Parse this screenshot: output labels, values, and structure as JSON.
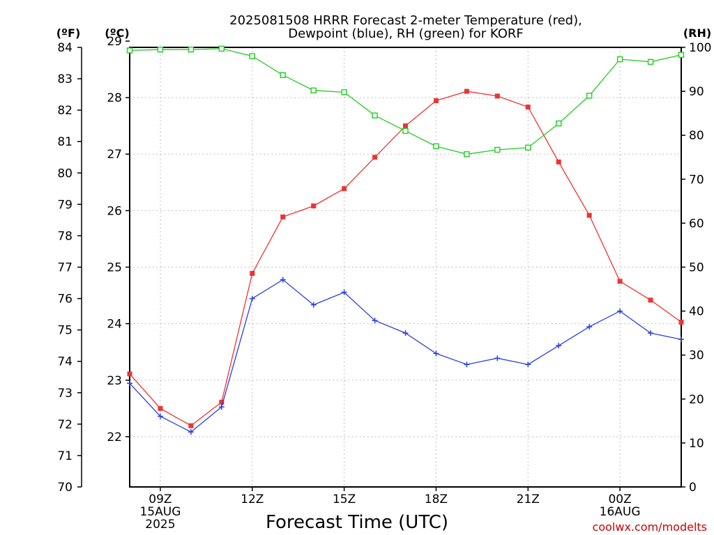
{
  "chart_data": {
    "type": "line",
    "title_lines": [
      "2025081508 HRRR Forecast 2-meter Temperature (red),",
      "Dewpoint (blue), RH (green) for KORF"
    ],
    "xlabel": "Forecast Time (UTC)",
    "credit": "coolwx.com/modelts",
    "units": {
      "fahrenheit": "(ºF)",
      "celsius": "(ºC)",
      "rh": "(RH)"
    },
    "x_range_hours": [
      8,
      26
    ],
    "x_ticks": [
      {
        "hour": 9,
        "lines": [
          "09Z",
          "15AUG",
          "2025"
        ]
      },
      {
        "hour": 12,
        "lines": [
          "12Z"
        ]
      },
      {
        "hour": 15,
        "lines": [
          "15Z"
        ]
      },
      {
        "hour": 18,
        "lines": [
          "18Z"
        ]
      },
      {
        "hour": 21,
        "lines": [
          "21Z"
        ]
      },
      {
        "hour": 24,
        "lines": [
          "00Z",
          "16AUG"
        ]
      }
    ],
    "y_left_f": {
      "range": [
        70,
        84
      ],
      "ticks": [
        70,
        71,
        72,
        73,
        74,
        75,
        76,
        77,
        78,
        79,
        80,
        81,
        82,
        83,
        84
      ]
    },
    "y_left_c": {
      "range": [
        21.1111,
        28.8889
      ],
      "ticks": [
        22,
        23,
        24,
        25,
        26,
        27,
        28,
        29
      ]
    },
    "y_right_rh": {
      "range": [
        0,
        100
      ],
      "ticks": [
        0,
        10,
        20,
        30,
        40,
        50,
        60,
        70,
        80,
        90,
        100
      ]
    },
    "hours": [
      8,
      9,
      10,
      11,
      12,
      13,
      14,
      15,
      16,
      17,
      18,
      19,
      20,
      21,
      22,
      23,
      24,
      25,
      26
    ],
    "series": [
      {
        "name": "Temperature",
        "axis": "fahrenheit",
        "color": "#ee3333",
        "marker": "filled-square",
        "values": [
          73.6,
          72.5,
          71.95,
          72.7,
          76.8,
          78.6,
          78.95,
          79.5,
          80.5,
          81.5,
          82.3,
          82.6,
          82.45,
          82.1,
          80.35,
          78.65,
          76.55,
          75.95,
          75.25
        ]
      },
      {
        "name": "Dewpoint",
        "axis": "fahrenheit",
        "color": "#2a3fe0",
        "marker": "plus",
        "values": [
          73.3,
          72.25,
          71.75,
          72.55,
          76.0,
          76.6,
          75.8,
          76.2,
          75.3,
          74.9,
          74.25,
          73.9,
          74.1,
          73.9,
          74.5,
          75.1,
          75.6,
          74.9,
          74.7
        ]
      },
      {
        "name": "RH",
        "axis": "rh",
        "color": "#22cc22",
        "marker": "open-square",
        "values": [
          99.3,
          99.5,
          99.5,
          99.7,
          98.0,
          93.7,
          90.2,
          89.8,
          84.5,
          81.0,
          77.5,
          75.7,
          76.7,
          77.2,
          82.7,
          89.0,
          97.3,
          96.7,
          98.3
        ]
      }
    ]
  }
}
